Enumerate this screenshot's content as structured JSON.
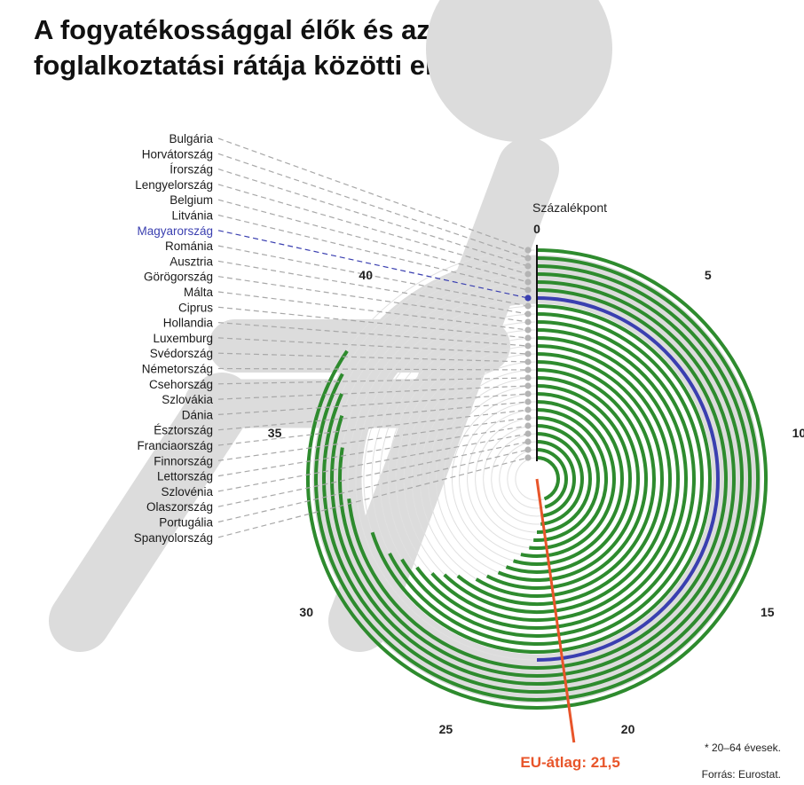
{
  "title_line1": "A fogyatékossággal élők és azzal nem élők",
  "title_line2": "foglalkoztatási rátája közötti eltérés, 2023*",
  "unit_label": "Százalékpont",
  "footnote": "* 20–64 évesek.",
  "source": "Forrás: Eurostat.",
  "colors": {
    "series": "#2e8b2e",
    "highlight": "#3a3fb0",
    "average": "#e8552a",
    "track": "#e0e0e0",
    "dot": "#b4b4b4",
    "highlight_label": "#3a3fb0",
    "background_icon": "#d6d6d6"
  },
  "icon": "wheelchair-icon",
  "chart_data": {
    "type": "radial-bar",
    "unit": "Százalékpont",
    "scale_max": 45,
    "ticks": [
      0,
      5,
      10,
      15,
      20,
      25,
      30,
      35,
      40
    ],
    "tick_labels": [
      "0",
      "5",
      "10",
      "15",
      "20",
      "25",
      "30",
      "35",
      "40"
    ],
    "highlight": "Magyarország",
    "average": {
      "label": "EU-átlag: 21,5",
      "value": 21.5
    },
    "categories": [
      "Bulgária",
      "Horvátország",
      "Írország",
      "Lengyelország",
      "Belgium",
      "Litvánia",
      "Magyarország",
      "Románia",
      "Ausztria",
      "Görögország",
      "Málta",
      "Ciprus",
      "Hollandia",
      "Luxemburg",
      "Svédország",
      "Németország",
      "Csehország",
      "Szlovákia",
      "Dánia",
      "Észtország",
      "Franciaország",
      "Finnország",
      "Lettország",
      "Szlovénia",
      "Olaszország",
      "Portugália",
      "Spanyolország"
    ],
    "values": [
      38.0,
      37.3,
      36.7,
      36.0,
      34.9,
      33.0,
      22.5,
      31.5,
      30.4,
      29.9,
      29.2,
      28.5,
      28.0,
      27.4,
      26.4,
      25.9,
      25.3,
      24.9,
      24.5,
      24.0,
      23.3,
      22.9,
      22.5,
      21.9,
      21.3,
      20.5,
      19.9
    ]
  }
}
